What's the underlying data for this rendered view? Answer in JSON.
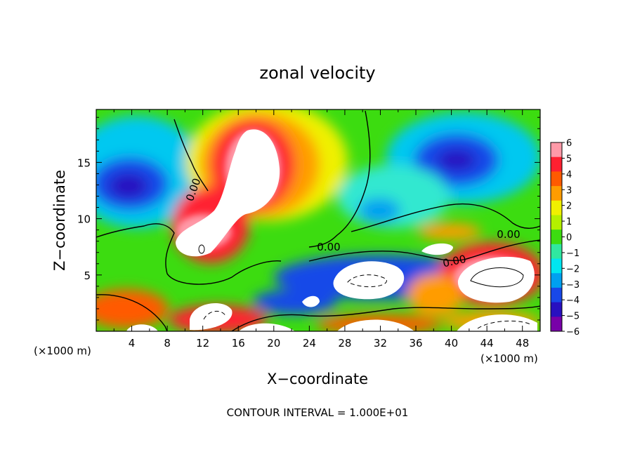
{
  "chart_data": {
    "type": "heatmap",
    "title": "zonal velocity",
    "xlabel": "X−coordinate",
    "ylabel": "Z−coordinate",
    "x_unit_left": "(×1000 m)",
    "x_unit_right": "(×1000 m)",
    "footer": "CONTOUR INTERVAL = 1.000E+01",
    "xlim": [
      0,
      50
    ],
    "ylim": [
      0,
      19.7
    ],
    "x_ticks": [
      "4",
      "8",
      "12",
      "16",
      "20",
      "24",
      "28",
      "32",
      "36",
      "40",
      "44",
      "48"
    ],
    "y_ticks": [
      "5",
      "10",
      "15"
    ],
    "colorbar_labels": [
      "6",
      "5",
      "4",
      "3",
      "2",
      "1",
      "0",
      "−1",
      "−2",
      "−3",
      "−4",
      "−5",
      "−6"
    ],
    "colorbar_colors": [
      "#ff9aa8",
      "#ff2030",
      "#ff5a00",
      "#ff9c00",
      "#f0f000",
      "#b4f000",
      "#3cdc10",
      "#30e8a0",
      "#00e6f0",
      "#00a0f0",
      "#1848e8",
      "#2810c0",
      "#7800a8"
    ],
    "contour_labels": [
      "0.00",
      "0.00",
      "0.00",
      "0.00"
    ],
    "grid": false,
    "legend": "colorbar-right"
  }
}
